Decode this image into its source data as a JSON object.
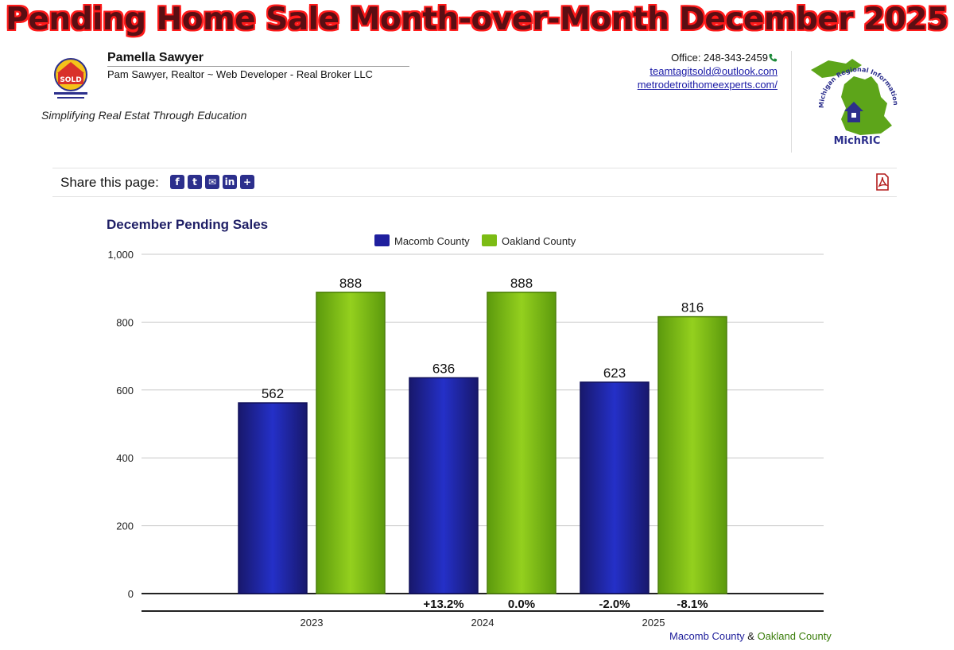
{
  "header": {
    "title": "Pending Home Sale Month-over-Month December 2025"
  },
  "agent": {
    "name": "Pamella Sawyer",
    "subtitle": "Pam Sawyer, Realtor ~ Web Developer - Real Broker LLC",
    "tagline": "Simplifying Real Estat Through Education",
    "logo_text": "SOLD"
  },
  "contact": {
    "office": "Office: 248-343-2459",
    "email": "teamtagitsold@outlook.com",
    "website": "metrodetroithomeexperts.com/"
  },
  "partner_logo": {
    "arc_text": "Michigan Regional Information Center",
    "name": "MichRIC"
  },
  "share": {
    "label": "Share this page:",
    "icons": [
      "facebook-icon",
      "twitter-icon",
      "email-icon",
      "linkedin-icon",
      "plus-icon"
    ]
  },
  "caption": {
    "series1": "Macomb County",
    "amp": "&",
    "series2": "Oakland County"
  },
  "colors": {
    "macomb": "#1f1f9e",
    "oakland": "#7cbc14",
    "title_fill": "#5a0e13",
    "title_outline": "#ff1a1a"
  },
  "chart_data": {
    "type": "bar",
    "title": "December Pending Sales",
    "categories": [
      "2023",
      "2024",
      "2025"
    ],
    "series": [
      {
        "name": "Macomb County",
        "values": [
          562,
          636,
          623
        ],
        "changes": [
          "",
          "+13.2%",
          "-2.0%"
        ]
      },
      {
        "name": "Oakland County",
        "values": [
          888,
          888,
          816
        ],
        "changes": [
          "",
          "0.0%",
          "-8.1%"
        ]
      }
    ],
    "yticks": [
      0,
      200,
      400,
      600,
      800,
      1000
    ],
    "ytick_labels": [
      "0",
      "200",
      "400",
      "600",
      "800",
      "1,000"
    ],
    "ylim": [
      0,
      1000
    ],
    "grid": true,
    "legend": "top-center",
    "xlabel": "",
    "ylabel": ""
  }
}
